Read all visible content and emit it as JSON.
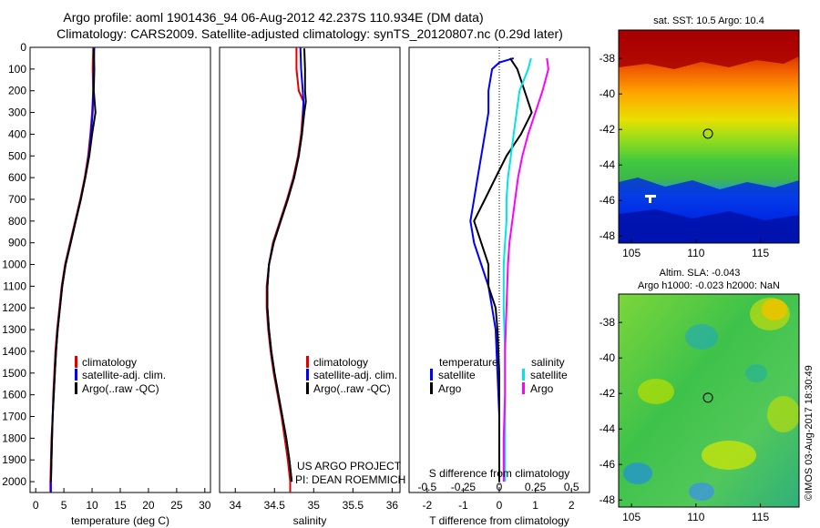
{
  "header": {
    "title_line1": "Argo profile: aoml 1901436_94 06-Aug-2012 42.237S 110.934E (DM data)",
    "title_line2": "Climatology: CARS2009. Satellite-adjusted climatology: synTS_20120807.nc (0.29d later)"
  },
  "colors": {
    "climatology": "#e00000",
    "satellite": "#0000ff",
    "argo": "#000000",
    "salinity_satellite": "#00e5e5",
    "salinity_argo": "#ff00ff"
  },
  "depth_axis": {
    "range": [
      0,
      2050
    ],
    "ticks": [
      0,
      100,
      200,
      300,
      400,
      500,
      600,
      700,
      800,
      900,
      1000,
      1100,
      1200,
      1300,
      1400,
      1500,
      1600,
      1700,
      1800,
      1900,
      2000
    ]
  },
  "chart_data": [
    {
      "type": "line",
      "name_key": "temperature",
      "xlabel": "temperature (deg C)",
      "xlim": [
        -1,
        31
      ],
      "xticks": [
        0,
        5,
        10,
        15,
        20,
        25,
        30
      ],
      "ylim": [
        2050,
        0
      ],
      "legend": {
        "placement": "lower-middle",
        "entries": [
          "climatology",
          "satellite-adj. clim.",
          "Argo(..raw -QC)"
        ]
      },
      "series": [
        {
          "name": "climatology",
          "color": "#e00000",
          "points": [
            [
              10.2,
              0
            ],
            [
              10.1,
              100
            ],
            [
              10.2,
              200
            ],
            [
              10.0,
              300
            ],
            [
              9.7,
              400
            ],
            [
              9.3,
              500
            ],
            [
              8.7,
              600
            ],
            [
              7.9,
              700
            ],
            [
              7.0,
              800
            ],
            [
              6.1,
              900
            ],
            [
              5.2,
              1000
            ],
            [
              4.6,
              1100
            ],
            [
              4.2,
              1200
            ],
            [
              3.8,
              1300
            ],
            [
              3.5,
              1400
            ],
            [
              3.3,
              1500
            ],
            [
              3.1,
              1600
            ],
            [
              3.0,
              1700
            ],
            [
              2.8,
              1800
            ],
            [
              2.7,
              1900
            ],
            [
              2.6,
              2000
            ],
            [
              2.6,
              2050
            ]
          ]
        },
        {
          "name": "satellite-adj. clim.",
          "color": "#0000ff",
          "points": [
            [
              10.4,
              0
            ],
            [
              10.3,
              100
            ],
            [
              10.2,
              200
            ],
            [
              10.1,
              300
            ],
            [
              9.8,
              400
            ],
            [
              9.4,
              500
            ],
            [
              8.8,
              600
            ],
            [
              8.0,
              700
            ],
            [
              7.1,
              800
            ],
            [
              6.2,
              900
            ],
            [
              5.3,
              1000
            ],
            [
              4.7,
              1100
            ],
            [
              4.3,
              1200
            ],
            [
              3.9,
              1300
            ],
            [
              3.6,
              1400
            ],
            [
              3.4,
              1500
            ],
            [
              3.2,
              1600
            ],
            [
              3.0,
              1700
            ],
            [
              2.9,
              1800
            ],
            [
              2.8,
              1900
            ],
            [
              2.7,
              2000
            ],
            [
              2.7,
              2050
            ]
          ]
        },
        {
          "name": "Argo(..raw -QC)",
          "color": "#000000",
          "points": [
            [
              10.3,
              5
            ],
            [
              10.4,
              100
            ],
            [
              10.3,
              200
            ],
            [
              10.6,
              300
            ],
            [
              10.0,
              400
            ],
            [
              9.5,
              500
            ],
            [
              8.8,
              600
            ],
            [
              8.0,
              700
            ],
            [
              7.1,
              800
            ],
            [
              6.2,
              900
            ],
            [
              5.3,
              1000
            ],
            [
              4.7,
              1100
            ],
            [
              4.3,
              1200
            ],
            [
              3.9,
              1300
            ],
            [
              3.6,
              1400
            ],
            [
              3.4,
              1500
            ],
            [
              3.2,
              1600
            ],
            [
              3.0,
              1700
            ],
            [
              2.9,
              1800
            ],
            [
              2.8,
              1900
            ],
            [
              2.7,
              2000
            ]
          ]
        }
      ]
    },
    {
      "type": "line",
      "name_key": "salinity",
      "xlabel": "salinity",
      "xlim": [
        33.8,
        36.1
      ],
      "xticks": [
        34,
        34.5,
        35,
        35.5,
        36
      ],
      "ylim": [
        2050,
        0
      ],
      "legend": {
        "placement": "lower-middle",
        "entries": [
          "climatology",
          "satellite-adj. clim.",
          "Argo(..raw -QC)"
        ]
      },
      "annotation": {
        "line1": "US ARGO PROJECT",
        "line2": "PI: DEAN ROEMMICH"
      },
      "series": [
        {
          "name": "climatology",
          "color": "#e00000",
          "points": [
            [
              34.78,
              0
            ],
            [
              34.78,
              100
            ],
            [
              34.81,
              200
            ],
            [
              34.87,
              250
            ],
            [
              34.86,
              300
            ],
            [
              34.84,
              400
            ],
            [
              34.8,
              500
            ],
            [
              34.74,
              600
            ],
            [
              34.66,
              700
            ],
            [
              34.57,
              800
            ],
            [
              34.48,
              900
            ],
            [
              34.43,
              1000
            ],
            [
              34.4,
              1100
            ],
            [
              34.4,
              1200
            ],
            [
              34.42,
              1300
            ],
            [
              34.45,
              1400
            ],
            [
              34.49,
              1500
            ],
            [
              34.54,
              1600
            ],
            [
              34.59,
              1700
            ],
            [
              34.63,
              1800
            ],
            [
              34.67,
              1900
            ],
            [
              34.7,
              2000
            ],
            [
              34.7,
              2050
            ]
          ]
        },
        {
          "name": "satellite-adj. clim.",
          "color": "#0000ff",
          "points": [
            [
              34.83,
              0
            ],
            [
              34.84,
              100
            ],
            [
              34.86,
              200
            ],
            [
              34.87,
              250
            ],
            [
              34.87,
              300
            ],
            [
              34.85,
              400
            ],
            [
              34.81,
              500
            ],
            [
              34.75,
              600
            ],
            [
              34.67,
              700
            ],
            [
              34.58,
              800
            ],
            [
              34.49,
              900
            ],
            [
              34.43,
              1000
            ],
            [
              34.41,
              1100
            ],
            [
              34.41,
              1200
            ],
            [
              34.43,
              1300
            ],
            [
              34.46,
              1400
            ],
            [
              34.5,
              1500
            ],
            [
              34.55,
              1600
            ],
            [
              34.6,
              1700
            ],
            [
              34.65,
              1800
            ],
            [
              34.69,
              1900
            ],
            [
              34.72,
              2000
            ]
          ]
        },
        {
          "name": "Argo(..raw -QC)",
          "color": "#000000",
          "points": [
            [
              34.88,
              5
            ],
            [
              34.89,
              100
            ],
            [
              34.89,
              200
            ],
            [
              34.9,
              250
            ],
            [
              34.88,
              300
            ],
            [
              34.85,
              400
            ],
            [
              34.81,
              500
            ],
            [
              34.75,
              600
            ],
            [
              34.67,
              700
            ],
            [
              34.58,
              800
            ],
            [
              34.49,
              900
            ],
            [
              34.43,
              1000
            ],
            [
              34.41,
              1100
            ],
            [
              34.41,
              1200
            ],
            [
              34.43,
              1300
            ],
            [
              34.46,
              1400
            ],
            [
              34.5,
              1500
            ],
            [
              34.55,
              1600
            ],
            [
              34.6,
              1700
            ],
            [
              34.65,
              1800
            ],
            [
              34.69,
              1900
            ],
            [
              34.72,
              2000
            ]
          ]
        }
      ]
    },
    {
      "type": "line",
      "name_key": "differences",
      "xlabel": "T difference from climatology",
      "xlabel_top": "S difference from climatology",
      "xlim": [
        -2.5,
        2.5
      ],
      "xticks": [
        -2,
        -1,
        0,
        1,
        2
      ],
      "xticks_top_labels": [
        "-0.5",
        "-0.25",
        "0",
        "0.25",
        "0.5"
      ],
      "ylim": [
        2050,
        0
      ],
      "legend": {
        "placement": "lower-middle",
        "temperature_title": "temperature",
        "salinity_title": "salinity",
        "entries": [
          "satellite",
          "Argo",
          "satellite",
          "Argo"
        ]
      },
      "series": [
        {
          "name": "T satellite",
          "color": "#0000ff",
          "points": [
            [
              0.4,
              50
            ],
            [
              0.0,
              70
            ],
            [
              -0.2,
              100
            ],
            [
              -0.3,
              200
            ],
            [
              -0.3,
              300
            ],
            [
              -0.4,
              400
            ],
            [
              -0.5,
              500
            ],
            [
              -0.6,
              600
            ],
            [
              -0.7,
              700
            ],
            [
              -0.8,
              800
            ],
            [
              -0.7,
              900
            ],
            [
              -0.5,
              1000
            ],
            [
              -0.3,
              1100
            ],
            [
              -0.2,
              1200
            ],
            [
              -0.1,
              1300
            ],
            [
              -0.05,
              1500
            ],
            [
              0.0,
              1700
            ],
            [
              0.0,
              2000
            ]
          ]
        },
        {
          "name": "T Argo",
          "color": "#000000",
          "points": [
            [
              0.3,
              50
            ],
            [
              0.5,
              100
            ],
            [
              0.7,
              200
            ],
            [
              0.9,
              300
            ],
            [
              0.6,
              400
            ],
            [
              0.2,
              500
            ],
            [
              -0.1,
              600
            ],
            [
              -0.4,
              700
            ],
            [
              -0.7,
              800
            ],
            [
              -0.5,
              900
            ],
            [
              -0.3,
              1000
            ],
            [
              -0.3,
              1100
            ],
            [
              -0.1,
              1200
            ],
            [
              -0.05,
              1300
            ],
            [
              0.0,
              1500
            ],
            [
              0.0,
              1700
            ],
            [
              0.0,
              2000
            ]
          ]
        },
        {
          "name": "S satellite",
          "color": "#00e5e5",
          "points": [
            [
              0.22,
              50
            ],
            [
              0.2,
              100
            ],
            [
              0.14,
              200
            ],
            [
              0.12,
              300
            ],
            [
              0.1,
              400
            ],
            [
              0.08,
              500
            ],
            [
              0.06,
              600
            ],
            [
              0.05,
              700
            ],
            [
              0.05,
              800
            ],
            [
              0.04,
              900
            ],
            [
              0.03,
              1000
            ],
            [
              0.03,
              1200
            ],
            [
              0.04,
              1400
            ],
            [
              0.04,
              1600
            ],
            [
              0.04,
              1800
            ],
            [
              0.04,
              2000
            ]
          ]
        },
        {
          "name": "S Argo",
          "color": "#ff00ff",
          "points": [
            [
              0.33,
              50
            ],
            [
              0.34,
              100
            ],
            [
              0.3,
              200
            ],
            [
              0.25,
              300
            ],
            [
              0.2,
              400
            ],
            [
              0.16,
              500
            ],
            [
              0.13,
              600
            ],
            [
              0.11,
              700
            ],
            [
              0.09,
              800
            ],
            [
              0.07,
              900
            ],
            [
              0.06,
              1000
            ],
            [
              0.05,
              1200
            ],
            [
              0.04,
              1400
            ],
            [
              0.04,
              1600
            ],
            [
              0.03,
              1800
            ],
            [
              0.03,
              2000
            ]
          ]
        }
      ]
    },
    {
      "type": "heatmap",
      "name_key": "sst_map",
      "title": "sat. SST: 10.5 Argo: 10.4",
      "xlim": [
        104,
        118
      ],
      "ylim": [
        -48.4,
        -36.4
      ],
      "xticks": [
        105,
        110,
        115
      ],
      "yticks": [
        -38,
        -40,
        -42,
        -44,
        -46,
        -48
      ],
      "marker": {
        "lon": 110.934,
        "lat": -42.237
      }
    },
    {
      "type": "heatmap",
      "name_key": "sla_map",
      "title_line1": "Altim. SLA: -0.043",
      "title_line2": "Argo h1000: -0.023 h2000: NaN",
      "xlim": [
        104,
        118
      ],
      "ylim": [
        -48.4,
        -36.4
      ],
      "xticks": [
        105,
        110,
        115
      ],
      "yticks": [
        -38,
        -40,
        -42,
        -44,
        -46,
        -48
      ],
      "marker": {
        "lon": 110.934,
        "lat": -42.237
      }
    }
  ],
  "footer": {
    "credit": "©IMOS 03-Aug-2017 18:30:49"
  }
}
